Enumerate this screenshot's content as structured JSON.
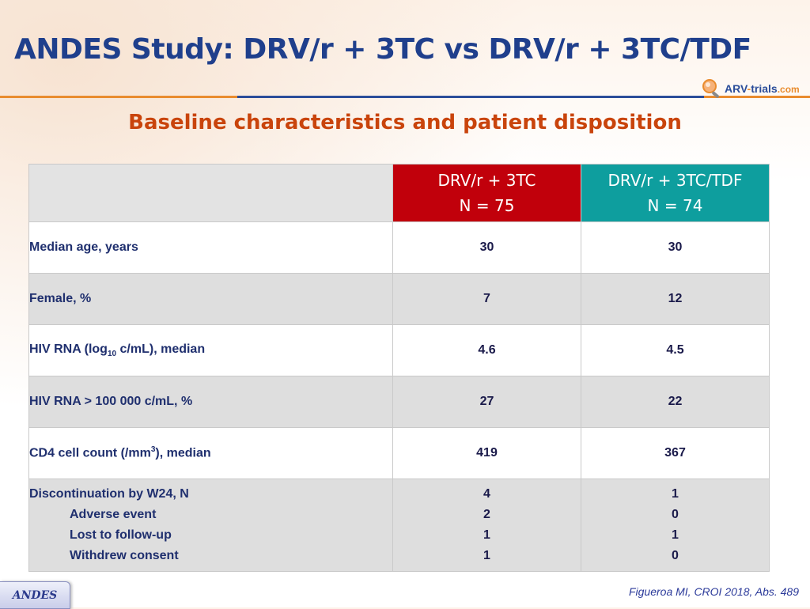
{
  "header": {
    "title": "ANDES Study: DRV/r + 3TC vs DRV/r + 3TC/TDF",
    "subtitle": "Baseline characteristics and patient disposition"
  },
  "logo": {
    "text_main": "ARV",
    "text_dash": "-",
    "text_trials": "trials",
    "text_com": ".com",
    "icon": "magnifier-logo-icon"
  },
  "table": {
    "columns": [
      {
        "line1": "DRV/r + 3TC",
        "line2": "N = 75",
        "color": "#c1000b"
      },
      {
        "line1": "DRV/r + 3TC/TDF",
        "line2": "N = 74",
        "color": "#0e9e9e"
      }
    ],
    "rows": [
      {
        "label": "Median age, years",
        "v1": "30",
        "v2": "30"
      },
      {
        "label": "Female, %",
        "v1": "7",
        "v2": "12"
      },
      {
        "label_pre": "HIV RNA (log",
        "label_sub": "10",
        "label_post": " c/mL), median",
        "v1": "4.6",
        "v2": "4.5"
      },
      {
        "label": "HIV RNA > 100 000 c/mL, %",
        "v1": "27",
        "v2": "22"
      },
      {
        "label_pre": "CD4 cell count (/mm",
        "label_sup": "3",
        "label_post": "), median",
        "v1": "419",
        "v2": "367"
      }
    ],
    "discontinuation": {
      "labels": [
        "Discontinuation by W24, N",
        "Adverse event",
        "Lost to follow-up",
        "Withdrew consent"
      ],
      "v1": [
        "4",
        "2",
        "1",
        "1"
      ],
      "v2": [
        "1",
        "0",
        "1",
        "0"
      ]
    }
  },
  "footer": {
    "tab_label": "ANDES",
    "citation": "Figueroa MI, CROI 2018, Abs. 489"
  },
  "colors": {
    "title": "#1f3f8c",
    "subtitle": "#c9440c",
    "arm1": "#c1000b",
    "arm2": "#0e9e9e",
    "shade": "#dedede"
  }
}
